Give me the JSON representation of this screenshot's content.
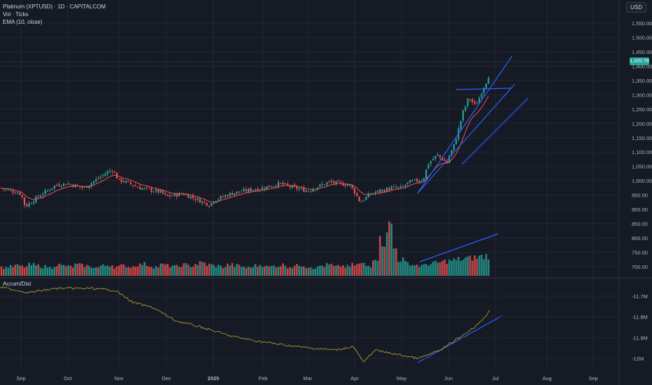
{
  "header": {
    "symbol": "Platinum (XPTUSD) · 1D · CAPITALCOM",
    "volume": "Vol · Ticks",
    "ema": "EMA (10, close)",
    "ad_label": "Accum/Dist",
    "currency": "USD",
    "last_price": "1,420.78"
  },
  "colors": {
    "background": "#161a25",
    "up": "#26a69a",
    "down": "#ef5350",
    "ema": "#ef5350",
    "trendline": "#2962ff",
    "ad_line": "#a99b2e",
    "grid": "#222631"
  },
  "chart_data": [
    {
      "type": "candlestick",
      "title": "Platinum (XPTUSD) · 1D · CAPITALCOM",
      "indicator": "EMA (10, close)",
      "ylim": [
        670,
        1600
      ],
      "y_ticks": [
        "1,550.00",
        "1,500.00",
        "1,450.00",
        "1,400.00",
        "1,350.00",
        "1,300.00",
        "1,250.00",
        "1,200.00",
        "1,150.00",
        "1,100.00",
        "1,050.00",
        "1,000.00",
        "950.00",
        "900.00",
        "850.00",
        "800.00",
        "750.00",
        "700.00"
      ],
      "months": [
        "Sep",
        "Oct",
        "Nov",
        "Dec",
        "2025",
        "Feb",
        "Mar",
        "Apr",
        "May",
        "Jun",
        "Jul",
        "Aug",
        "Sep"
      ],
      "last_value": 1420.78,
      "close_anchors": [
        {
          "month": "Sep",
          "value": 955
        },
        {
          "month": "Oct",
          "value": 990
        },
        {
          "month": "Nov",
          "value": 1000
        },
        {
          "month": "Dec",
          "value": 945
        },
        {
          "month": "2025",
          "value": 930
        },
        {
          "month": "Feb",
          "value": 975
        },
        {
          "month": "Mar",
          "value": 965
        },
        {
          "month": "Apr",
          "value": 960
        },
        {
          "month": "May",
          "value": 975
        },
        {
          "month": "Jun",
          "value": 1080
        },
        {
          "month": "Jul",
          "value": 1420
        }
      ]
    },
    {
      "type": "bar",
      "title": "Vol · Ticks",
      "note": "volume histogram, relative scale",
      "series": [
        {
          "values": [
            0.45,
            0.5,
            0.55,
            0.5,
            0.6,
            0.55,
            0.5,
            0.45,
            0.6,
            0.55,
            0.5,
            0.6,
            0.55,
            0.5,
            0.45,
            0.55,
            0.6,
            0.5,
            0.55,
            0.5,
            0.6,
            0.65,
            0.55,
            0.5,
            0.6,
            0.55,
            0.5,
            0.6,
            0.55,
            0.65,
            0.7,
            0.6,
            0.55,
            0.5,
            0.6,
            0.55,
            0.5,
            0.45,
            0.55,
            0.6,
            0.5,
            0.55,
            0.6,
            0.5,
            0.55,
            0.6,
            0.5,
            0.45,
            0.55,
            0.6,
            0.5,
            0.55,
            0.5,
            0.6,
            0.65,
            0.55,
            1.0,
            1.9,
            2.7,
            1.5,
            0.9,
            0.7,
            0.6,
            0.55,
            0.65,
            0.7,
            0.75,
            0.8,
            0.85,
            0.9,
            0.95,
            1.0,
            1.05,
            1.1
          ]
        }
      ]
    },
    {
      "type": "line",
      "title": "Accum/Dist",
      "y_ticks": [
        "-11.7M",
        "-11.8M",
        "-11.9M",
        "-12M"
      ],
      "ylim": [
        -12.05,
        -11.65
      ]
    }
  ]
}
